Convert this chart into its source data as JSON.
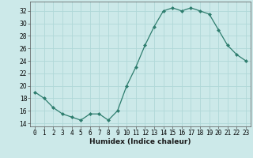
{
  "x": [
    0,
    1,
    2,
    3,
    4,
    5,
    6,
    7,
    8,
    9,
    10,
    11,
    12,
    13,
    14,
    15,
    16,
    17,
    18,
    19,
    20,
    21,
    22,
    23
  ],
  "y": [
    19,
    18,
    16.5,
    15.5,
    15,
    14.5,
    15.5,
    15.5,
    14.5,
    16,
    20,
    23,
    26.5,
    29.5,
    32,
    32.5,
    32,
    32.5,
    32,
    31.5,
    29,
    26.5,
    25,
    24
  ],
  "line_color": "#2e7d6e",
  "marker": "D",
  "marker_size": 2,
  "bg_color": "#cce9e9",
  "grid_color": "#b0d8d8",
  "xlabel": "Humidex (Indice chaleur)",
  "xlim": [
    -0.5,
    23.5
  ],
  "ylim": [
    13.5,
    33.5
  ],
  "yticks": [
    14,
    16,
    18,
    20,
    22,
    24,
    26,
    28,
    30,
    32
  ],
  "xticks": [
    0,
    1,
    2,
    3,
    4,
    5,
    6,
    7,
    8,
    9,
    10,
    11,
    12,
    13,
    14,
    15,
    16,
    17,
    18,
    19,
    20,
    21,
    22,
    23
  ],
  "label_fontsize": 6.5,
  "tick_fontsize": 5.5,
  "grid_linewidth": 0.6,
  "line_width": 0.9
}
